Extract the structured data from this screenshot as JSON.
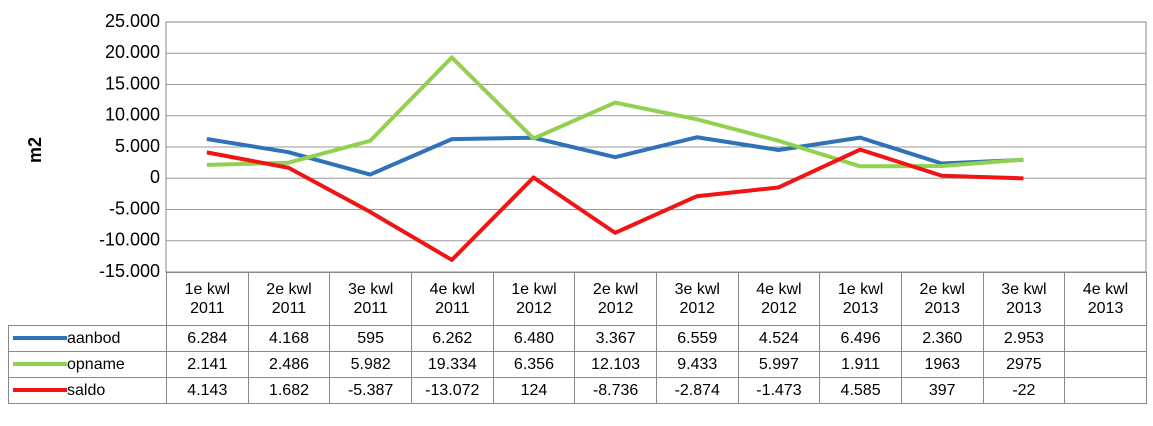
{
  "chart_data": {
    "type": "line",
    "y_label": "m2",
    "categories": [
      "1e kwl 2011",
      "2e kwl 2011",
      "3e kwl 2011",
      "4e kwl 2011",
      "1e kwl 2012",
      "2e kwl 2012",
      "3e kwl 2012",
      "4e kwl 2012",
      "1e kwl 2013",
      "2e kwl 2013",
      "3e kwl 2013",
      "4e kwl 2013"
    ],
    "series": [
      {
        "name": "aanbod",
        "color": "#2f72b8",
        "values": [
          6284,
          4168,
          595,
          6262,
          6480,
          3367,
          6559,
          4524,
          6496,
          2360,
          2953,
          null
        ],
        "value_labels": [
          "6.284",
          "4.168",
          "595",
          "6.262",
          "6.480",
          "3.367",
          "6.559",
          "4.524",
          "6.496",
          "2.360",
          "2.953",
          null
        ]
      },
      {
        "name": "opname",
        "color": "#92d050",
        "values": [
          2141,
          2486,
          5982,
          19334,
          6356,
          12103,
          9433,
          5997,
          1911,
          1963,
          2975,
          null
        ],
        "value_labels": [
          "2.141",
          "2.486",
          "5.982",
          "19.334",
          "6.356",
          "12.103",
          "9.433",
          "5.997",
          "1.911",
          "1963",
          "2975",
          null
        ]
      },
      {
        "name": "saldo",
        "color": "#f01414",
        "values": [
          4143,
          1682,
          -5387,
          -13072,
          124,
          -8736,
          -2874,
          -1473,
          4585,
          397,
          -22,
          null
        ],
        "value_labels": [
          "4.143",
          "1.682",
          "-5.387",
          "-13.072",
          "124",
          "-8.736",
          "-2.874",
          "-1.473",
          "4.585",
          "397",
          "-22",
          null
        ]
      }
    ],
    "ylim": [
      -15000,
      25000
    ],
    "yticks": [
      {
        "value": -15000,
        "label": "-15.000"
      },
      {
        "value": -10000,
        "label": "-10.000"
      },
      {
        "value": -5000,
        "label": "-5.000"
      },
      0,
      {
        "value": 5000,
        "label": "5.000"
      },
      {
        "value": 10000,
        "label": "10.000"
      },
      {
        "value": 15000,
        "label": "15.000"
      },
      {
        "value": 20000,
        "label": "20.000"
      },
      {
        "value": 25000,
        "label": "25.000"
      }
    ],
    "grid": true
  }
}
